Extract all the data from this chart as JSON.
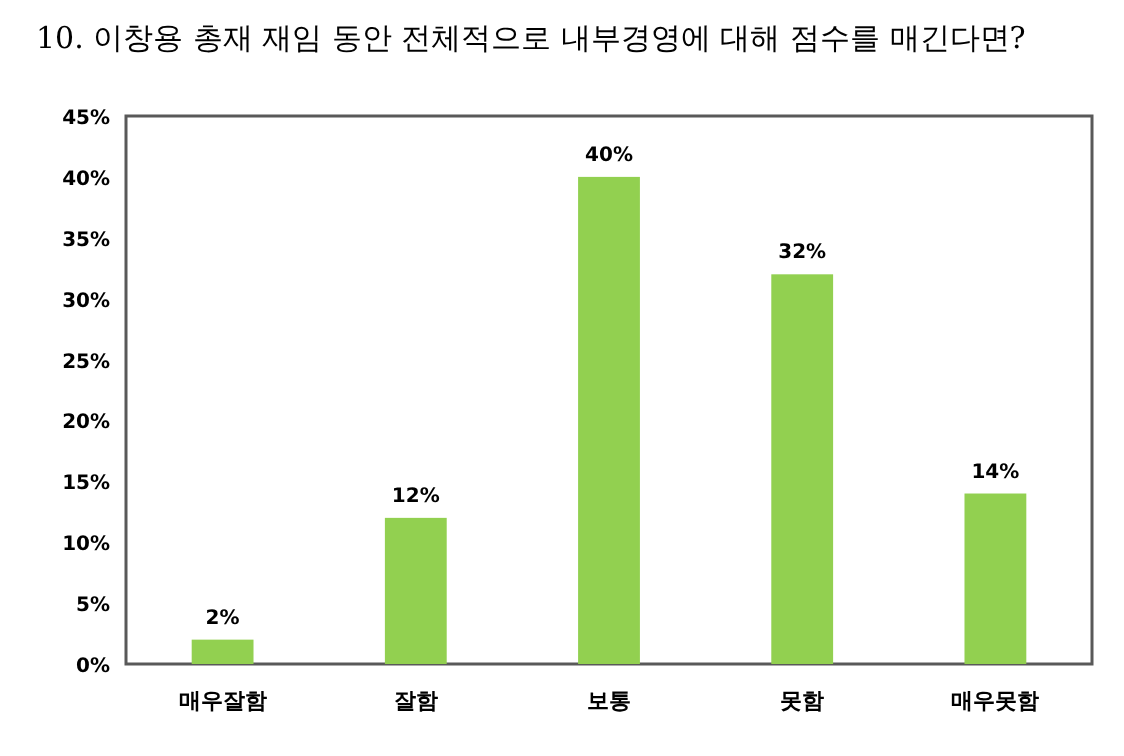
{
  "chart_data": {
    "type": "bar",
    "title": "10. 이창용 총재 재임 동안 전체적으로 내부경영에 대해 점수를 매긴다면?",
    "categories": [
      "매우잘함",
      "잘함",
      "보통",
      "못함",
      "매우못함"
    ],
    "values": [
      2,
      12,
      40,
      32,
      14
    ],
    "color": "#92d050",
    "value_labels": [
      "2%",
      "12%",
      "40%",
      "32%",
      "14%"
    ],
    "ylim": [
      0,
      45
    ],
    "yticks": [
      {
        "value": 0,
        "label": "0%"
      },
      {
        "value": 5,
        "label": "5%"
      },
      {
        "value": 10,
        "label": "10%"
      },
      {
        "value": 15,
        "label": "15%"
      },
      {
        "value": 20,
        "label": "20%"
      },
      {
        "value": 25,
        "label": "25%"
      },
      {
        "value": 30,
        "label": "30%"
      },
      {
        "value": 35,
        "label": "35%"
      },
      {
        "value": 40,
        "label": "40%"
      },
      {
        "value": 45,
        "label": "45%"
      }
    ],
    "grid": false
  }
}
